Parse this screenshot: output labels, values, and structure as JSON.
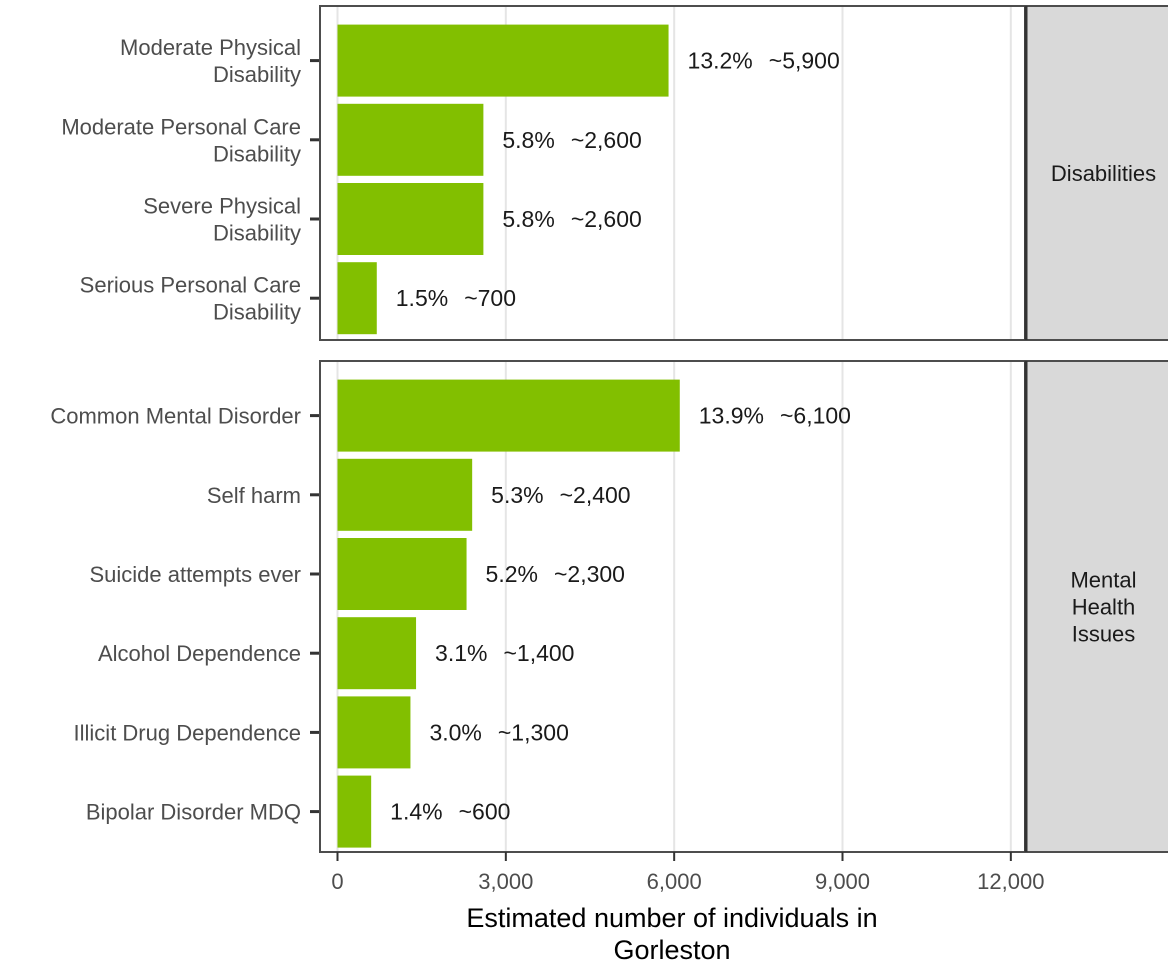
{
  "colors": {
    "bar": "#82bf00",
    "grid": "#e5e5e5",
    "panel_border": "#4d4d4d",
    "strip_fill": "#d9d9d9",
    "axis_text": "#4d4d4d"
  },
  "chart_data": {
    "type": "bar",
    "orientation": "horizontal",
    "xlabel_lines": [
      "Estimated number of individuals in",
      "Gorleston"
    ],
    "xlim": [
      0,
      14000
    ],
    "xticks": [
      0,
      3000,
      6000,
      9000,
      12000
    ],
    "xtick_labels": [
      "0",
      "3,000",
      "6,000",
      "9,000",
      "12,000"
    ],
    "grid": true,
    "legend": "none",
    "panels": [
      {
        "facet_label": [
          "Disabilities"
        ],
        "categories": [
          {
            "label_lines": [
              "Moderate Physical",
              "Disability"
            ],
            "value": 5900,
            "pct_label": "13.2%",
            "count_label": "~5,900"
          },
          {
            "label_lines": [
              "Moderate Personal Care",
              "Disability"
            ],
            "value": 2600,
            "pct_label": "5.8%",
            "count_label": "~2,600"
          },
          {
            "label_lines": [
              "Severe Physical",
              "Disability"
            ],
            "value": 2600,
            "pct_label": "5.8%",
            "count_label": "~2,600"
          },
          {
            "label_lines": [
              "Serious Personal Care",
              "Disability"
            ],
            "value": 700,
            "pct_label": "1.5%",
            "count_label": "~700"
          }
        ]
      },
      {
        "facet_label": [
          "Mental",
          "Health",
          "Issues"
        ],
        "categories": [
          {
            "label_lines": [
              "Common Mental Disorder"
            ],
            "value": 6100,
            "pct_label": "13.9%",
            "count_label": "~6,100"
          },
          {
            "label_lines": [
              "Self harm"
            ],
            "value": 2400,
            "pct_label": "5.3%",
            "count_label": "~2,400"
          },
          {
            "label_lines": [
              "Suicide attempts ever"
            ],
            "value": 2300,
            "pct_label": "5.2%",
            "count_label": "~2,300"
          },
          {
            "label_lines": [
              "Alcohol Dependence"
            ],
            "value": 1400,
            "pct_label": "3.1%",
            "count_label": "~1,400"
          },
          {
            "label_lines": [
              "Illicit Drug Dependence"
            ],
            "value": 1300,
            "pct_label": "3.0%",
            "count_label": "~1,300"
          },
          {
            "label_lines": [
              "Bipolar Disorder MDQ"
            ],
            "value": 600,
            "pct_label": "1.4%",
            "count_label": "~600"
          }
        ]
      }
    ]
  }
}
